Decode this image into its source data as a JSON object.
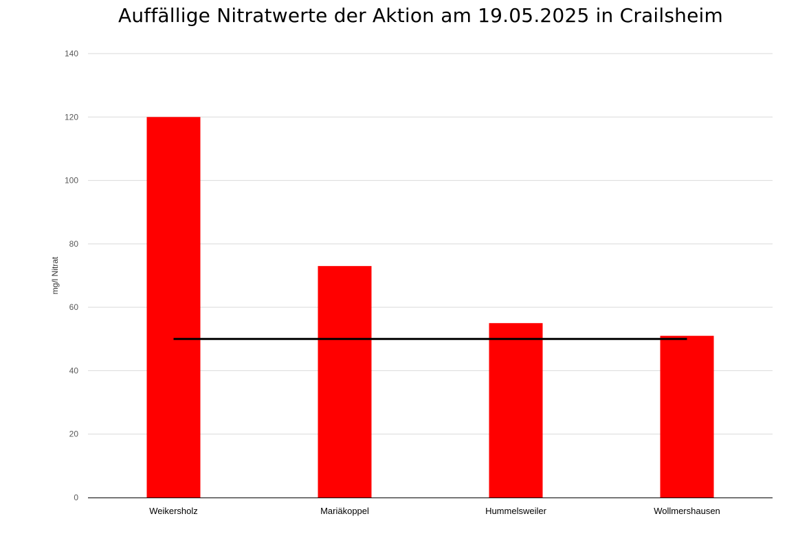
{
  "chart_data": {
    "type": "bar",
    "title": "Auffällige Nitratwerte der Aktion am 19.05.2025 in Crailsheim",
    "xlabel": "",
    "ylabel": "mg/l Nitrat",
    "categories": [
      "Weikersholz",
      "Mariäkoppel",
      "Hummelsweiler",
      "Wollmershausen"
    ],
    "series": [
      {
        "values": [
          120,
          73,
          55,
          51
        ],
        "color": "#ff0000"
      }
    ],
    "reference_line": {
      "value": 50,
      "color": "#000000"
    },
    "ylim": [
      0,
      140
    ],
    "yticks": [
      0,
      20,
      40,
      60,
      80,
      100,
      120,
      140
    ],
    "grid": true,
    "legend": "none"
  }
}
